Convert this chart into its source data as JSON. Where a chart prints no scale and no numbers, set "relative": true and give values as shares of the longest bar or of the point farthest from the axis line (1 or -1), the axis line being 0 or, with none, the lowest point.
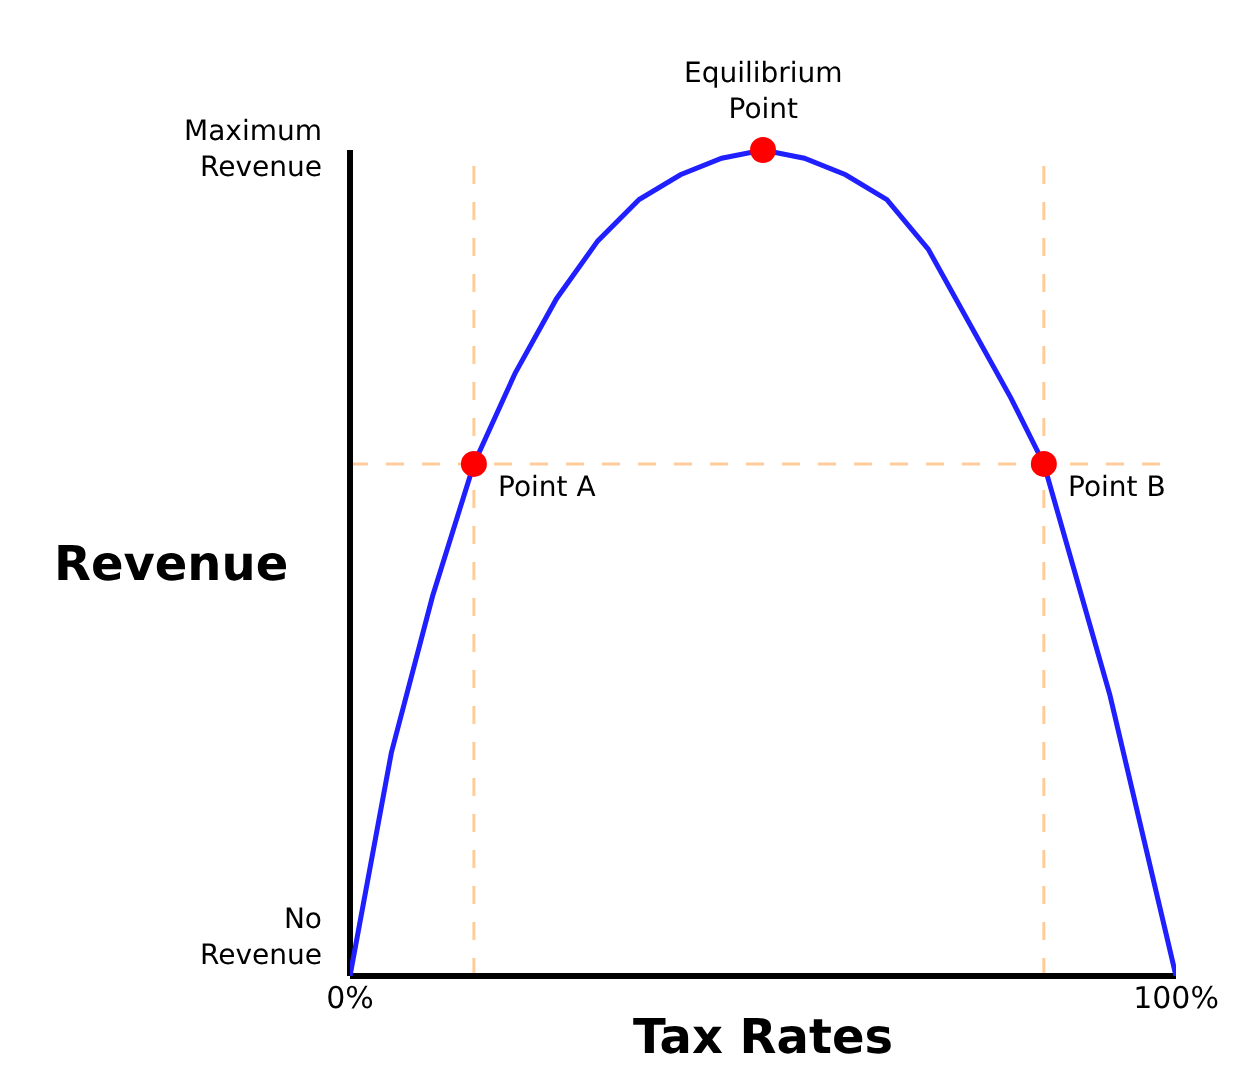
{
  "chart_data": {
    "type": "line",
    "xlabel": "Tax Rates",
    "ylabel": "Revenue",
    "xlim": [
      0,
      100
    ],
    "xticks": [
      {
        "value": 0,
        "label": "0%"
      },
      {
        "value": 100,
        "label": "100%"
      }
    ],
    "relative": true,
    "series": [
      {
        "marker": "none",
        "color": "#1f1fff",
        "x": [
          0,
          5,
          10,
          15,
          20,
          25,
          30,
          35,
          40,
          45,
          50,
          55,
          60,
          65,
          70,
          75,
          80,
          84,
          88,
          92,
          96,
          100
        ],
        "values": [
          0,
          0.27,
          0.46,
          0.62,
          0.73,
          0.82,
          0.89,
          0.94,
          0.97,
          0.99,
          1,
          0.99,
          0.97,
          0.94,
          0.88,
          0.79,
          0.7,
          0.62,
          0.48,
          0.34,
          0.17,
          0
        ]
      },
      {
        "type": "scatter",
        "marker": "circle",
        "color": "#ff0000",
        "x": [
          15,
          50,
          84
        ],
        "values": [
          0.62,
          1,
          0.62
        ]
      }
    ],
    "ref_lines": [
      {
        "axis": "x",
        "value": 15,
        "color": "#ffcc99",
        "line_style": "dashed"
      },
      {
        "axis": "x",
        "value": 84,
        "color": "#ffcc99",
        "line_style": "dashed"
      },
      {
        "axis": "y",
        "value": 0.62,
        "color": "#ffcc99",
        "line_style": "dashed"
      }
    ],
    "annotations": [
      {
        "text": "Point A",
        "x": 15,
        "y": 0.62
      },
      {
        "text": "Point B",
        "x": 84,
        "y": 0.62
      },
      {
        "text": "Equilibrium\nPoint",
        "x": 50,
        "y": 1
      },
      "No\nRevenue",
      "Maximum\nRevenue"
    ],
    "line_style": "solid"
  }
}
